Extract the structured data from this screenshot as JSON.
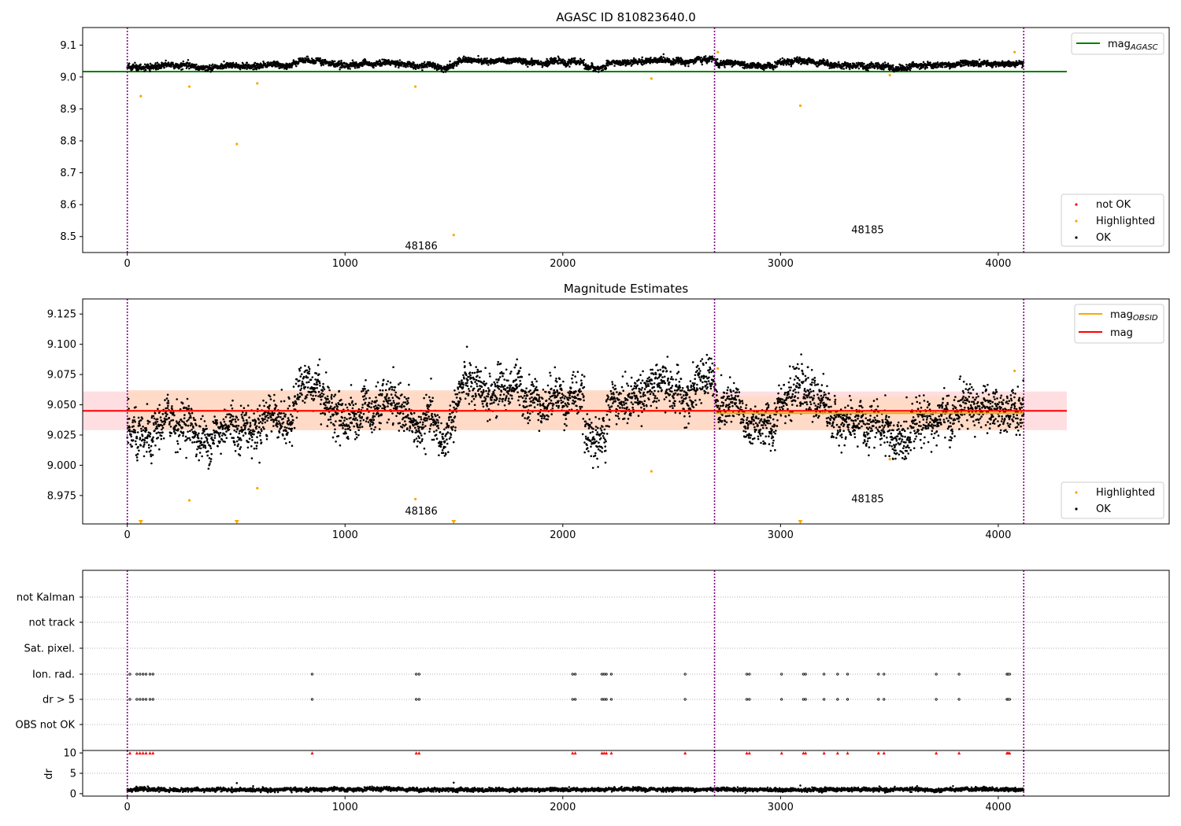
{
  "colors": {
    "ok": "#000000",
    "highlighted": "#ffa500",
    "not_ok": "#ff0000",
    "agasc_line": "#008000",
    "obsid_line": "#ffa500",
    "mag_line": "#ff0000",
    "mag_band": "#ffd8dd",
    "obsid_band": "#ffd9c4",
    "obs_boundary": "#800080",
    "grid": "#b0b0b0"
  },
  "chart_data": [
    {
      "id": "panel1",
      "type": "scatter",
      "title": "AGASC ID 810823640.0",
      "xlabel": "",
      "ylabel": "",
      "xlim": [
        -205,
        4785
      ],
      "ylim": [
        8.45,
        9.155
      ],
      "xticks": [
        0,
        1000,
        2000,
        3000,
        4000
      ],
      "xtick_labels": [
        "0",
        "1000",
        "2000",
        "3000",
        "4000"
      ],
      "yticks": [
        8.5,
        8.6,
        8.7,
        8.8,
        8.9,
        9.0,
        9.1
      ],
      "ytick_labels": [
        "8.5",
        "8.6",
        "8.7",
        "8.8",
        "8.9",
        "9.0",
        "9.1"
      ],
      "obs_boundaries": [
        0,
        2697,
        4117
      ],
      "obsids": [
        {
          "x": 1350,
          "y": 8.47,
          "label": "48186"
        },
        {
          "x": 3400,
          "y": 8.52,
          "label": "48185"
        }
      ],
      "ok_series": {
        "n_points": 4117,
        "baseline": 9.04,
        "noise": 0.012,
        "range": [
          9.0,
          9.09
        ]
      },
      "highlighted": [
        {
          "x": 62,
          "y": 8.94
        },
        {
          "x": 285,
          "y": 8.97
        },
        {
          "x": 503,
          "y": 8.79
        },
        {
          "x": 597,
          "y": 8.98
        },
        {
          "x": 1323,
          "y": 8.97
        },
        {
          "x": 1499,
          "y": 8.505
        },
        {
          "x": 2407,
          "y": 8.995
        },
        {
          "x": 2712,
          "y": 9.078
        },
        {
          "x": 3091,
          "y": 8.91
        },
        {
          "x": 3502,
          "y": 9.006
        },
        {
          "x": 4075,
          "y": 9.078
        }
      ],
      "lines": [
        {
          "name": "mag_AGASC",
          "name_main": "mag",
          "name_sub": "AGASC",
          "y": 9.017,
          "x": [
            -205,
            4315
          ]
        }
      ],
      "legend_top": {
        "position": "top-right",
        "entries": [
          {
            "label_main": "mag",
            "label_sub": "AGASC"
          }
        ]
      },
      "legend_bottom": {
        "position": "bottom-right",
        "entries": [
          "not OK",
          "Highlighted",
          "OK"
        ]
      }
    },
    {
      "id": "panel2",
      "type": "scatter",
      "title": "Magnitude Estimates",
      "xlabel": "",
      "ylabel": "",
      "xlim": [
        -205,
        4785
      ],
      "ylim": [
        8.9515,
        9.1375
      ],
      "xticks": [
        0,
        1000,
        2000,
        3000,
        4000
      ],
      "xtick_labels": [
        "0",
        "1000",
        "2000",
        "3000",
        "4000"
      ],
      "yticks": [
        8.975,
        9.0,
        9.025,
        9.05,
        9.075,
        9.1,
        9.125
      ],
      "ytick_labels": [
        "8.975",
        "9.000",
        "9.025",
        "9.050",
        "9.075",
        "9.100",
        "9.125"
      ],
      "obs_boundaries": [
        0,
        2697,
        4117
      ],
      "obsids": [
        {
          "x": 1350,
          "y": 8.962,
          "label": "48186"
        },
        {
          "x": 3400,
          "y": 8.972,
          "label": "48185"
        }
      ],
      "mag": {
        "value": 9.045,
        "band": [
          9.029,
          9.061
        ],
        "x": [
          -205,
          4315
        ]
      },
      "obsid_mags": [
        {
          "value": 9.045,
          "band": [
            9.029,
            9.062
          ],
          "x": [
            0,
            2697
          ]
        },
        {
          "value": 9.043,
          "band": [
            9.029,
            9.057
          ],
          "x": [
            2697,
            4117
          ]
        }
      ],
      "highlighted": [
        {
          "x": 285,
          "y": 8.971
        },
        {
          "x": 597,
          "y": 8.981
        },
        {
          "x": 1323,
          "y": 8.972
        },
        {
          "x": 2407,
          "y": 8.995
        },
        {
          "x": 2712,
          "y": 9.08
        },
        {
          "x": 3502,
          "y": 9.005
        },
        {
          "x": 4075,
          "y": 9.078
        }
      ],
      "below_axis_markers": [
        62,
        503,
        1499,
        3091
      ],
      "legend_top": {
        "position": "top-right",
        "entries": [
          {
            "label_main": "mag",
            "label_sub": "OBSID"
          },
          {
            "label_main": "mag",
            "label_sub": ""
          }
        ]
      },
      "legend_bottom": {
        "position": "bottom-right",
        "entries": [
          "Highlighted",
          "OK"
        ]
      }
    },
    {
      "id": "panel3",
      "type": "scatter",
      "title": "",
      "xlabel": "",
      "ylabel": "",
      "xlim": [
        -205,
        4785
      ],
      "categories": [
        "OBS not OK",
        "dr > 5",
        "Ion. rad.",
        "Sat. pixel.",
        "not track",
        "not Kalman"
      ],
      "obs_boundaries": [
        0,
        2697,
        4117
      ],
      "flag_times": [
        12,
        44,
        58,
        72,
        86,
        104,
        118,
        849,
        1327,
        1340,
        2045,
        2057,
        2180,
        2190,
        2200,
        2223,
        2562,
        2845,
        2857,
        3005,
        3105,
        3115,
        3200,
        3262,
        3308,
        3450,
        3475,
        3715,
        3820,
        4040,
        4045,
        4052
      ]
    },
    {
      "id": "panel4",
      "type": "scatter",
      "title": "",
      "xlabel": "",
      "ylabel": "dr",
      "xlim": [
        -205,
        4785
      ],
      "ylim": [
        -0.6,
        10.6
      ],
      "yticks": [
        0,
        5,
        10
      ],
      "ytick_labels": [
        "0",
        "5",
        "10"
      ],
      "obs_boundaries": [
        0,
        2697,
        4117
      ],
      "dr_series": {
        "n_points": 4117,
        "baseline": 1.0,
        "noise": 0.35,
        "outliers": [
          {
            "x": 503,
            "y": 2.6
          },
          {
            "x": 1499,
            "y": 2.7
          },
          {
            "x": 3091,
            "y": 2.0
          }
        ]
      },
      "clipped_markers_y": 10,
      "clipped_marker_times": [
        12,
        44,
        58,
        72,
        86,
        104,
        118,
        849,
        1327,
        1340,
        2045,
        2057,
        2180,
        2190,
        2200,
        2223,
        2562,
        2845,
        2857,
        3005,
        3105,
        3115,
        3200,
        3262,
        3308,
        3450,
        3475,
        3715,
        3820,
        4040,
        4045,
        4052
      ]
    }
  ]
}
